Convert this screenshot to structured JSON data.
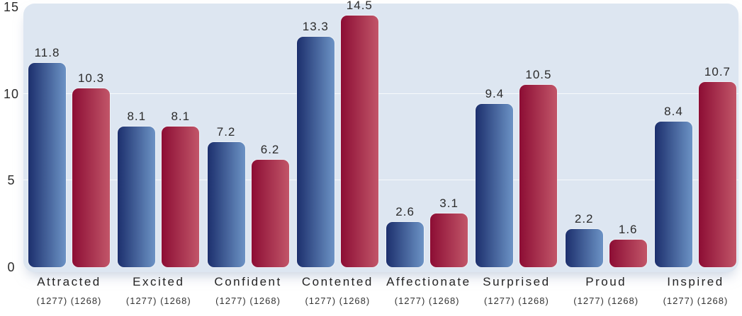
{
  "page": {
    "background": "#ffffff",
    "plot_background": "#dde6f1",
    "text_color": "#2b2b2b",
    "gridline_color": "rgba(255,255,255,0.75)"
  },
  "chart_data": {
    "type": "bar",
    "title": "",
    "xlabel": "",
    "ylabel": "",
    "legend": "none",
    "grid": "horizontal, faint white lines at 5 and 10",
    "ylim": [
      0,
      15
    ],
    "yticks": [
      0,
      5,
      10,
      15
    ],
    "gridlines": [
      5,
      10
    ],
    "categories": [
      "Attracted",
      "Excited",
      "Confident",
      "Contented",
      "Affectionate",
      "Surprised",
      "Proud",
      "Inspired"
    ],
    "category_sublabels": [
      "(1277) (1268)",
      "(1277) (1268)",
      "(1277) (1268)",
      "(1277) (1268)",
      "(1277) (1268)",
      "(1277) (1268)",
      "(1277) (1268)",
      "(1277) (1268)"
    ],
    "series": [
      {
        "name": "blue",
        "count_label": "(1277)",
        "color_dark": "#1c2f6d",
        "color_light": "#6c93c5",
        "values": [
          11.8,
          8.1,
          7.2,
          13.3,
          2.6,
          9.4,
          2.2,
          8.4
        ]
      },
      {
        "name": "red",
        "count_label": "(1268)",
        "color_dark": "#8c0d34",
        "color_light": "#c25669",
        "values": [
          10.3,
          8.1,
          6.2,
          14.5,
          3.1,
          10.5,
          1.6,
          10.7
        ]
      }
    ]
  }
}
